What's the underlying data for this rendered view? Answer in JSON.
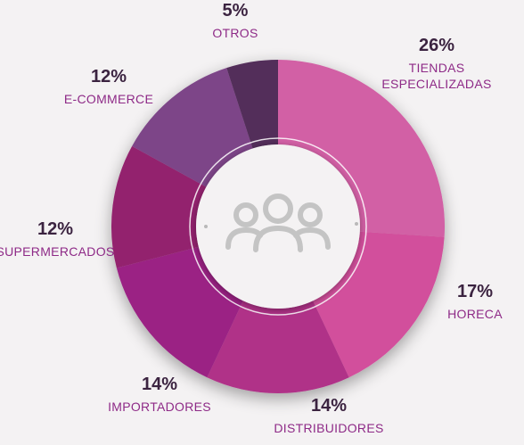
{
  "chart_data": {
    "type": "pie",
    "style": "donut",
    "center_icon": "users-group-icon",
    "label_color": "#8e2a87",
    "value_color": "#3b2340",
    "slices": [
      {
        "label": [
          "TIENDAS",
          "ESPECIALIZADAS"
        ],
        "value": 26,
        "value_label": "26%",
        "color": "#d261a5"
      },
      {
        "label": [
          "HORECA"
        ],
        "value": 17,
        "value_label": "17%",
        "color": "#d24f9c"
      },
      {
        "label": [
          "DISTRIBUIDORES"
        ],
        "value": 14,
        "value_label": "14%",
        "color": "#b03088"
      },
      {
        "label": [
          "IMPORTADORES"
        ],
        "value": 14,
        "value_label": "14%",
        "color": "#9b2384"
      },
      {
        "label": [
          "SUPERMERCADOS"
        ],
        "value": 12,
        "value_label": "12%",
        "color": "#93206e"
      },
      {
        "label": [
          "E-COMMERCE"
        ],
        "value": 12,
        "value_label": "12%",
        "color": "#7d4488"
      },
      {
        "label": [
          "OTROS"
        ],
        "value": 5,
        "value_label": "5%",
        "color": "#532d5a"
      }
    ]
  }
}
